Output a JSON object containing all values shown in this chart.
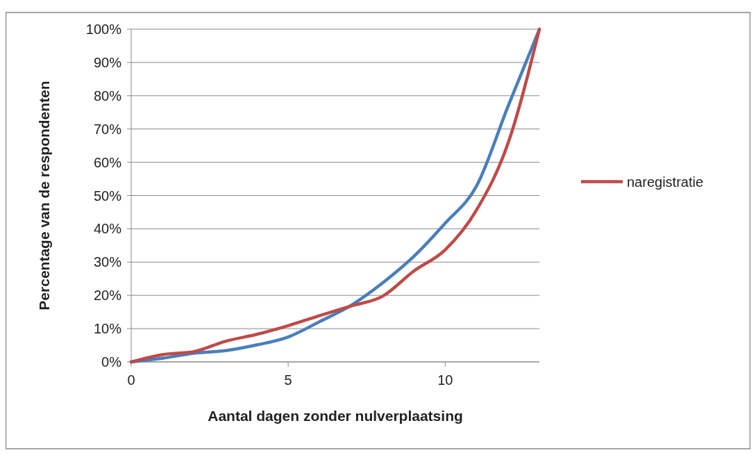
{
  "chart_data": {
    "type": "line",
    "xlabel": "Aantal dagen zonder nulverplaatsing",
    "ylabel": "Percentage van de respondenten",
    "x": [
      0,
      1,
      2,
      3,
      4,
      5,
      6,
      7,
      8,
      9,
      10,
      11,
      12,
      13
    ],
    "series": [
      {
        "color": "#4a7ebb",
        "values": [
          0,
          1.1,
          2.6,
          3.4,
          5.1,
          7.5,
          12.1,
          17,
          23.7,
          31.7,
          41.7,
          52.9,
          76.8,
          100
        ]
      },
      {
        "name": "naregistratie",
        "color": "#be4b48",
        "values": [
          0,
          2.2,
          3.1,
          6.2,
          8.3,
          10.9,
          13.9,
          16.8,
          19.7,
          27.3,
          33.7,
          45.7,
          65.7,
          100
        ]
      }
    ],
    "xlim": [
      0,
      13
    ],
    "xticks": [
      0,
      5,
      10
    ],
    "ylim": [
      0,
      100
    ],
    "yticks": [
      {
        "value": 0,
        "label": "0%"
      },
      {
        "value": 10,
        "label": "10%"
      },
      {
        "value": 20,
        "label": "20%"
      },
      {
        "value": 30,
        "label": "30%"
      },
      {
        "value": 40,
        "label": "40%"
      },
      {
        "value": 50,
        "label": "50%"
      },
      {
        "value": 60,
        "label": "60%"
      },
      {
        "value": 70,
        "label": "70%"
      },
      {
        "value": 80,
        "label": "80%"
      },
      {
        "value": 90,
        "label": "90%"
      },
      {
        "value": 100,
        "label": "100%"
      }
    ],
    "grid": "y",
    "legend": "right",
    "marker": "none",
    "line_style": "solid"
  }
}
